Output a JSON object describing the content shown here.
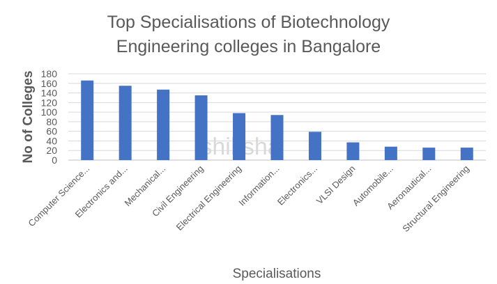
{
  "chart_data": {
    "type": "bar",
    "title_lines": [
      "Top Specialisations of Biotechnology",
      "Engineering colleges in Bangalore"
    ],
    "xlabel": "Specialisations",
    "ylabel": "No of Colleges",
    "categories": [
      "Computer Science...",
      "Electronics and...",
      "Mechanical...",
      "Civil Engineering",
      "Electrical Engineering",
      "Information...",
      "Electronics...",
      "VLSI Design",
      "Automobile...",
      "Aeronautical...",
      "Structural Engineering"
    ],
    "values": [
      166,
      155,
      147,
      135,
      98,
      94,
      59,
      37,
      28,
      26,
      26
    ],
    "yticks": [
      0,
      20,
      40,
      60,
      80,
      100,
      120,
      140,
      160,
      180
    ],
    "ylim": [
      0,
      180
    ],
    "grid": true,
    "legend": "none",
    "bar_color": "#4472C4",
    "watermark": "shiksha"
  }
}
